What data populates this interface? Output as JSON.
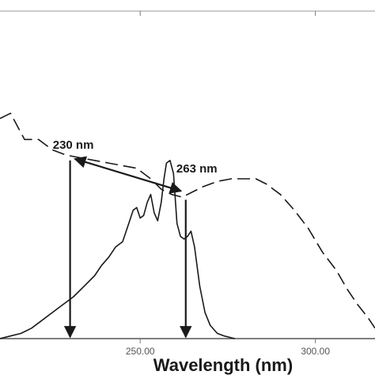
{
  "chart_data": {
    "type": "line",
    "title": "",
    "xlabel": "Wavelength (nm)",
    "ylabel": "",
    "xlim": [
      210,
      317
    ],
    "ylim": [
      0,
      1.25
    ],
    "x_ticks": [
      250,
      300
    ],
    "x_tick_labels": [
      "250.00",
      "300.00"
    ],
    "grid": false,
    "legend": "none",
    "series": [
      {
        "style": "dashed",
        "color": "#1a1a1a",
        "x": [
          210.0,
          213.0,
          217.0,
          221.0,
          225.0,
          229.0,
          233.0,
          237.0,
          241.0,
          245.0,
          249.0,
          253.0,
          256.0,
          259.0,
          262.0,
          265.0,
          268.0,
          272.0,
          276.0,
          280.0,
          283.0,
          286.0,
          290.0,
          294.0,
          298.0,
          302.0,
          306.0,
          309.0,
          312.0,
          315.0,
          317.0
        ],
        "y": [
          0.84,
          0.86,
          0.76,
          0.76,
          0.72,
          0.7,
          0.69,
          0.68,
          0.67,
          0.66,
          0.65,
          0.61,
          0.57,
          0.55,
          0.54,
          0.56,
          0.58,
          0.6,
          0.61,
          0.61,
          0.61,
          0.59,
          0.55,
          0.49,
          0.42,
          0.33,
          0.26,
          0.19,
          0.13,
          0.08,
          0.04
        ]
      },
      {
        "style": "solid",
        "color": "#1a1a1a",
        "x": [
          210.0,
          213.0,
          216.0,
          219.0,
          222.0,
          225.0,
          228.0,
          231.0,
          234.0,
          237.0,
          239.0,
          241.0,
          243.0,
          245.0,
          246.5,
          248.0,
          249.0,
          250.0,
          251.0,
          252.0,
          253.0,
          254.0,
          255.0,
          256.0,
          256.8,
          257.5,
          258.5,
          259.5,
          260.5,
          261.5,
          262.5,
          263.5,
          264.5,
          265.5,
          267.0,
          268.5,
          270.0,
          272.0,
          274.0,
          277.0
        ],
        "y": [
          0.0,
          0.01,
          0.02,
          0.04,
          0.07,
          0.1,
          0.13,
          0.16,
          0.2,
          0.24,
          0.28,
          0.31,
          0.35,
          0.37,
          0.43,
          0.49,
          0.5,
          0.46,
          0.47,
          0.52,
          0.55,
          0.48,
          0.45,
          0.52,
          0.61,
          0.67,
          0.68,
          0.63,
          0.44,
          0.39,
          0.38,
          0.39,
          0.41,
          0.35,
          0.2,
          0.1,
          0.05,
          0.02,
          0.01,
          0.0
        ]
      }
    ],
    "annotations": [
      {
        "label": "230 nm",
        "x": 230,
        "y_from": 0.68
      },
      {
        "label": "263 nm",
        "x": 263,
        "y_from": 0.53
      }
    ]
  }
}
